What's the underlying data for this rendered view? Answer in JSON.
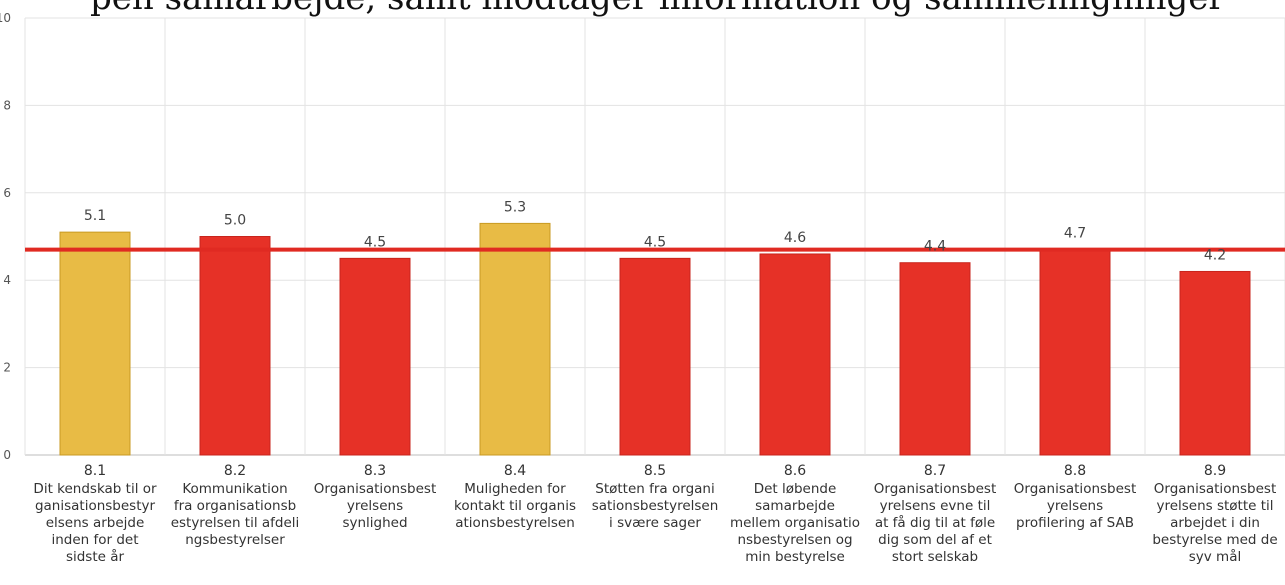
{
  "header": {
    "partial_text": "pen samarbejde, samt modtager information og sammenligninger"
  },
  "colors": {
    "above_average": "#e8bb45",
    "below_average": "#e63127",
    "reference_line": "#e02a22",
    "grid": "#e3e3e3"
  },
  "chart_data": {
    "type": "bar",
    "ylim": [
      0,
      10
    ],
    "yticks": [
      0,
      2,
      4,
      6,
      8,
      10
    ],
    "ytick_labels": [
      "0",
      "2",
      "4",
      "6",
      "8",
      "10"
    ],
    "reference_value": 4.7,
    "grid": true,
    "categories": [
      {
        "code": "8.1",
        "label": [
          "Dit kendskab til or",
          "ganisationsbestyr",
          "elsens arbejde",
          "inden for det",
          "sidste år"
        ],
        "value": 5.1,
        "value_label": "5.1",
        "color": "above_average"
      },
      {
        "code": "8.2",
        "label": [
          "Kommunikation",
          "fra organisationsb",
          "estyrelsen til afdeli",
          "ngsbestyrelser"
        ],
        "value": 5.0,
        "value_label": "5.0",
        "color": "below_average"
      },
      {
        "code": "8.3",
        "label": [
          "Organisationsbest",
          "yrelsens",
          "synlighed"
        ],
        "value": 4.5,
        "value_label": "4.5",
        "color": "below_average"
      },
      {
        "code": "8.4",
        "label": [
          "Muligheden for",
          "kontakt til organis",
          "ationsbestyrelsen"
        ],
        "value": 5.3,
        "value_label": "5.3",
        "color": "above_average"
      },
      {
        "code": "8.5",
        "label": [
          "Støtten fra organi",
          "sationsbestyrelsen",
          "i svære sager"
        ],
        "value": 4.5,
        "value_label": "4.5",
        "color": "below_average"
      },
      {
        "code": "8.6",
        "label": [
          "Det løbende",
          "samarbejde",
          "mellem organisatio",
          "nsbestyrelsen og",
          "min bestyrelse"
        ],
        "value": 4.6,
        "value_label": "4.6",
        "color": "below_average"
      },
      {
        "code": "8.7",
        "label": [
          "Organisationsbest",
          "yrelsens evne til",
          "at få dig til at føle",
          "dig som del af et",
          "stort selskab"
        ],
        "value": 4.4,
        "value_label": "4.4",
        "color": "below_average"
      },
      {
        "code": "8.8",
        "label": [
          "Organisationsbest",
          "yrelsens",
          "profilering af SAB"
        ],
        "value": 4.7,
        "value_label": "4.7",
        "color": "below_average"
      },
      {
        "code": "8.9",
        "label": [
          "Organisationsbest",
          "yrelsens støtte til",
          "arbejdet i din",
          "bestyrelse med de",
          "syv mål"
        ],
        "value": 4.2,
        "value_label": "4.2",
        "color": "below_average"
      }
    ]
  }
}
